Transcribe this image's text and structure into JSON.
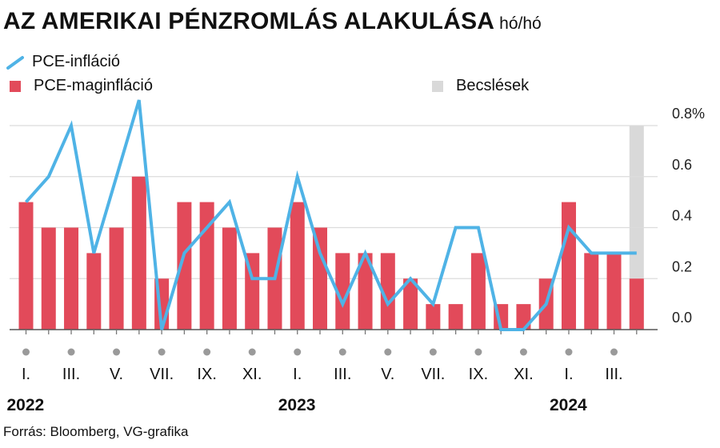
{
  "title": "AZ AMERIKAI PÉNZROMLÁS ALAKULÁSA",
  "unit": "hó/hó",
  "legend": {
    "line_label": "PCE-infláció",
    "bar_label": "PCE-maginfláció",
    "estimate_label": "Becslések"
  },
  "colors": {
    "line": "#4fb3e6",
    "bar": "#e24a5a",
    "estimate": "#d9d9d9",
    "grid": "#dcdcdc",
    "dot": "#9a9a9a"
  },
  "source": "Forrás: Bloomberg, VG-grafika",
  "chart_data": {
    "type": "bar",
    "ylim": [
      0,
      0.8
    ],
    "y_ticks": [
      "0.0",
      "0.2",
      "0.4",
      "0.6",
      "0.8%"
    ],
    "x_tick_labels": [
      "I.",
      "III.",
      "V.",
      "VII.",
      "IX.",
      "XI.",
      "I.",
      "III.",
      "V.",
      "VII.",
      "IX.",
      "XI.",
      "I.",
      "III."
    ],
    "x_tick_months": [
      1,
      3,
      5,
      7,
      9,
      11,
      13,
      15,
      17,
      19,
      21,
      23,
      25,
      27
    ],
    "year_labels": [
      {
        "label": "2022",
        "month": 1
      },
      {
        "label": "2023",
        "month": 13
      },
      {
        "label": "2024",
        "month": 25
      }
    ],
    "months": [
      "2022-01",
      "2022-02",
      "2022-03",
      "2022-04",
      "2022-05",
      "2022-06",
      "2022-07",
      "2022-08",
      "2022-09",
      "2022-10",
      "2022-11",
      "2022-12",
      "2023-01",
      "2023-02",
      "2023-03",
      "2023-04",
      "2023-05",
      "2023-06",
      "2023-07",
      "2023-08",
      "2023-09",
      "2023-10",
      "2023-11",
      "2023-12",
      "2024-01",
      "2024-02",
      "2024-03",
      "2024-04"
    ],
    "series": [
      {
        "name": "PCE-maginfláció",
        "type": "bar",
        "values": [
          0.5,
          0.4,
          0.4,
          0.3,
          0.4,
          0.6,
          0.2,
          0.5,
          0.5,
          0.4,
          0.3,
          0.4,
          0.5,
          0.4,
          0.3,
          0.3,
          0.3,
          0.2,
          0.1,
          0.1,
          0.3,
          0.1,
          0.1,
          0.2,
          0.5,
          0.3,
          0.3,
          0.2
        ]
      },
      {
        "name": "PCE-infláció",
        "type": "line",
        "values": [
          0.5,
          0.6,
          0.8,
          0.3,
          0.6,
          0.9,
          0.0,
          0.3,
          0.4,
          0.5,
          0.2,
          0.2,
          0.6,
          0.3,
          0.1,
          0.3,
          0.1,
          0.2,
          0.1,
          0.4,
          0.4,
          0.0,
          0.0,
          0.1,
          0.4,
          0.3,
          0.3,
          0.3
        ]
      }
    ],
    "estimate_months": [
      "2024-04"
    ]
  }
}
